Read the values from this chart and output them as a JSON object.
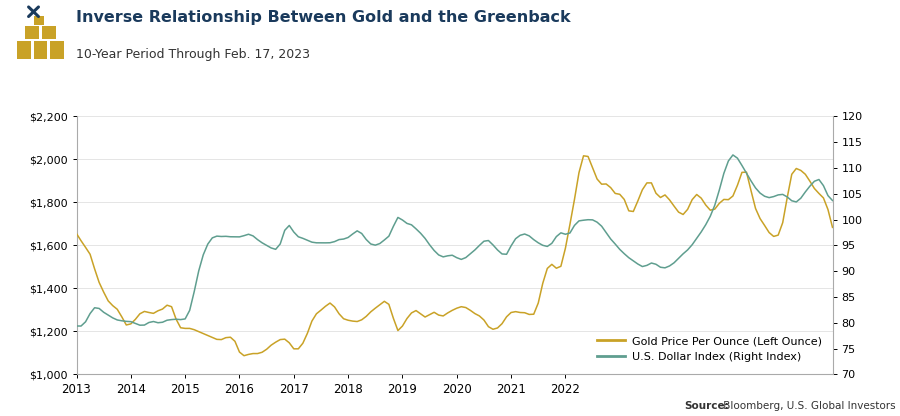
{
  "title": "Inverse Relationship Between Gold and the Greenback",
  "subtitle": "10-Year Period Through Feb. 17, 2023",
  "title_color": "#1a3a5c",
  "gold_color": "#c9a227",
  "usd_color": "#5f9e8f",
  "source_label_bold": "Source:",
  "source_label_rest": " Bloomberg, U.S. Global Investors",
  "gold_label": "Gold Price Per Ounce (Left Ounce)",
  "usd_label": "U.S. Dollar Index (Right Index)",
  "left_ylim": [
    1000,
    2200
  ],
  "right_ylim": [
    70,
    120
  ],
  "left_yticks": [
    1000,
    1200,
    1400,
    1600,
    1800,
    2000,
    2200
  ],
  "right_yticks": [
    70,
    75,
    80,
    85,
    90,
    95,
    100,
    105,
    110,
    115,
    120
  ],
  "left_yticklabels": [
    "$1,000",
    "$1,200",
    "$1,400",
    "$1,600",
    "$1,800",
    "$2,000",
    "$2,200"
  ],
  "right_yticklabels": [
    "70",
    "75",
    "80",
    "85",
    "90",
    "95",
    "100",
    "105",
    "110",
    "115",
    "120"
  ],
  "background_color": "#ffffff",
  "gold_data": [
    1670,
    1620,
    1580,
    1590,
    1480,
    1420,
    1390,
    1330,
    1320,
    1310,
    1280,
    1200,
    1240,
    1250,
    1290,
    1300,
    1290,
    1270,
    1310,
    1290,
    1330,
    1350,
    1240,
    1200,
    1220,
    1215,
    1210,
    1200,
    1190,
    1180,
    1175,
    1160,
    1155,
    1180,
    1170,
    1185,
    1075,
    1085,
    1095,
    1100,
    1095,
    1100,
    1115,
    1140,
    1150,
    1165,
    1170,
    1160,
    1100,
    1115,
    1140,
    1180,
    1265,
    1285,
    1300,
    1310,
    1355,
    1315,
    1280,
    1250,
    1255,
    1250,
    1240,
    1255,
    1265,
    1295,
    1310,
    1320,
    1350,
    1350,
    1270,
    1150,
    1240,
    1260,
    1290,
    1310,
    1285,
    1250,
    1280,
    1305,
    1270,
    1260,
    1295,
    1295,
    1310,
    1320,
    1315,
    1300,
    1280,
    1275,
    1265,
    1210,
    1205,
    1215,
    1225,
    1280,
    1290,
    1300,
    1280,
    1295,
    1280,
    1260,
    1310,
    1440,
    1510,
    1530,
    1490,
    1460,
    1590,
    1700,
    1800,
    1960,
    2050,
    2030,
    1960,
    1900,
    1870,
    1900,
    1880,
    1820,
    1850,
    1840,
    1730,
    1740,
    1810,
    1870,
    1890,
    1930,
    1820,
    1800,
    1870,
    1800,
    1790,
    1750,
    1730,
    1760,
    1820,
    1860,
    1820,
    1790,
    1750,
    1760,
    1800,
    1830,
    1800,
    1820,
    1870,
    1960,
    1990,
    1840,
    1760,
    1720,
    1700,
    1650,
    1640,
    1630,
    1680,
    1820,
    1980,
    1960,
    1950,
    1940,
    1900,
    1860,
    1840,
    1830,
    1800,
    1640
  ],
  "usd_data": [
    79.5,
    79.0,
    79.8,
    82.0,
    83.5,
    83.0,
    81.8,
    81.6,
    80.9,
    80.4,
    80.5,
    80.1,
    80.5,
    79.8,
    79.5,
    79.2,
    80.3,
    80.5,
    79.8,
    79.9,
    80.8,
    80.5,
    80.8,
    80.7,
    80.2,
    81.5,
    86.0,
    90.5,
    93.5,
    95.5,
    96.8,
    97.0,
    96.5,
    97.0,
    96.5,
    96.8,
    96.5,
    96.8,
    97.5,
    97.0,
    96.0,
    95.5,
    95.0,
    94.5,
    94.0,
    94.0,
    99.0,
    100.0,
    97.0,
    96.5,
    96.5,
    96.0,
    95.5,
    95.5,
    95.5,
    95.5,
    95.5,
    95.5,
    96.5,
    96.0,
    96.5,
    97.0,
    98.5,
    97.5,
    96.0,
    95.0,
    95.0,
    95.0,
    96.5,
    96.0,
    98.5,
    102.0,
    99.5,
    99.0,
    99.5,
    98.0,
    97.5,
    96.5,
    95.0,
    94.0,
    93.0,
    92.5,
    93.0,
    93.5,
    92.5,
    92.0,
    92.5,
    93.5,
    94.0,
    95.0,
    96.0,
    96.5,
    95.0,
    94.0,
    93.5,
    92.0,
    95.5,
    96.5,
    97.0,
    97.5,
    97.0,
    96.0,
    95.5,
    95.0,
    94.5,
    95.0,
    97.0,
    98.0,
    97.0,
    96.5,
    99.5,
    100.0,
    99.8,
    100.0,
    100.2,
    99.5,
    99.0,
    97.5,
    96.0,
    95.5,
    94.0,
    93.5,
    92.5,
    92.0,
    91.5,
    90.5,
    91.0,
    92.0,
    91.5,
    90.5,
    90.5,
    91.0,
    91.5,
    92.5,
    93.5,
    94.0,
    95.0,
    96.5,
    97.5,
    99.0,
    100.5,
    102.5,
    105.5,
    109.5,
    111.5,
    113.5,
    112.0,
    110.5,
    109.0,
    107.5,
    106.0,
    105.0,
    104.5,
    104.0,
    104.5,
    104.8,
    105.2,
    104.5,
    103.5,
    103.0,
    104.0,
    105.5,
    106.5,
    107.5,
    108.5,
    107.0,
    104.0,
    103.5
  ]
}
